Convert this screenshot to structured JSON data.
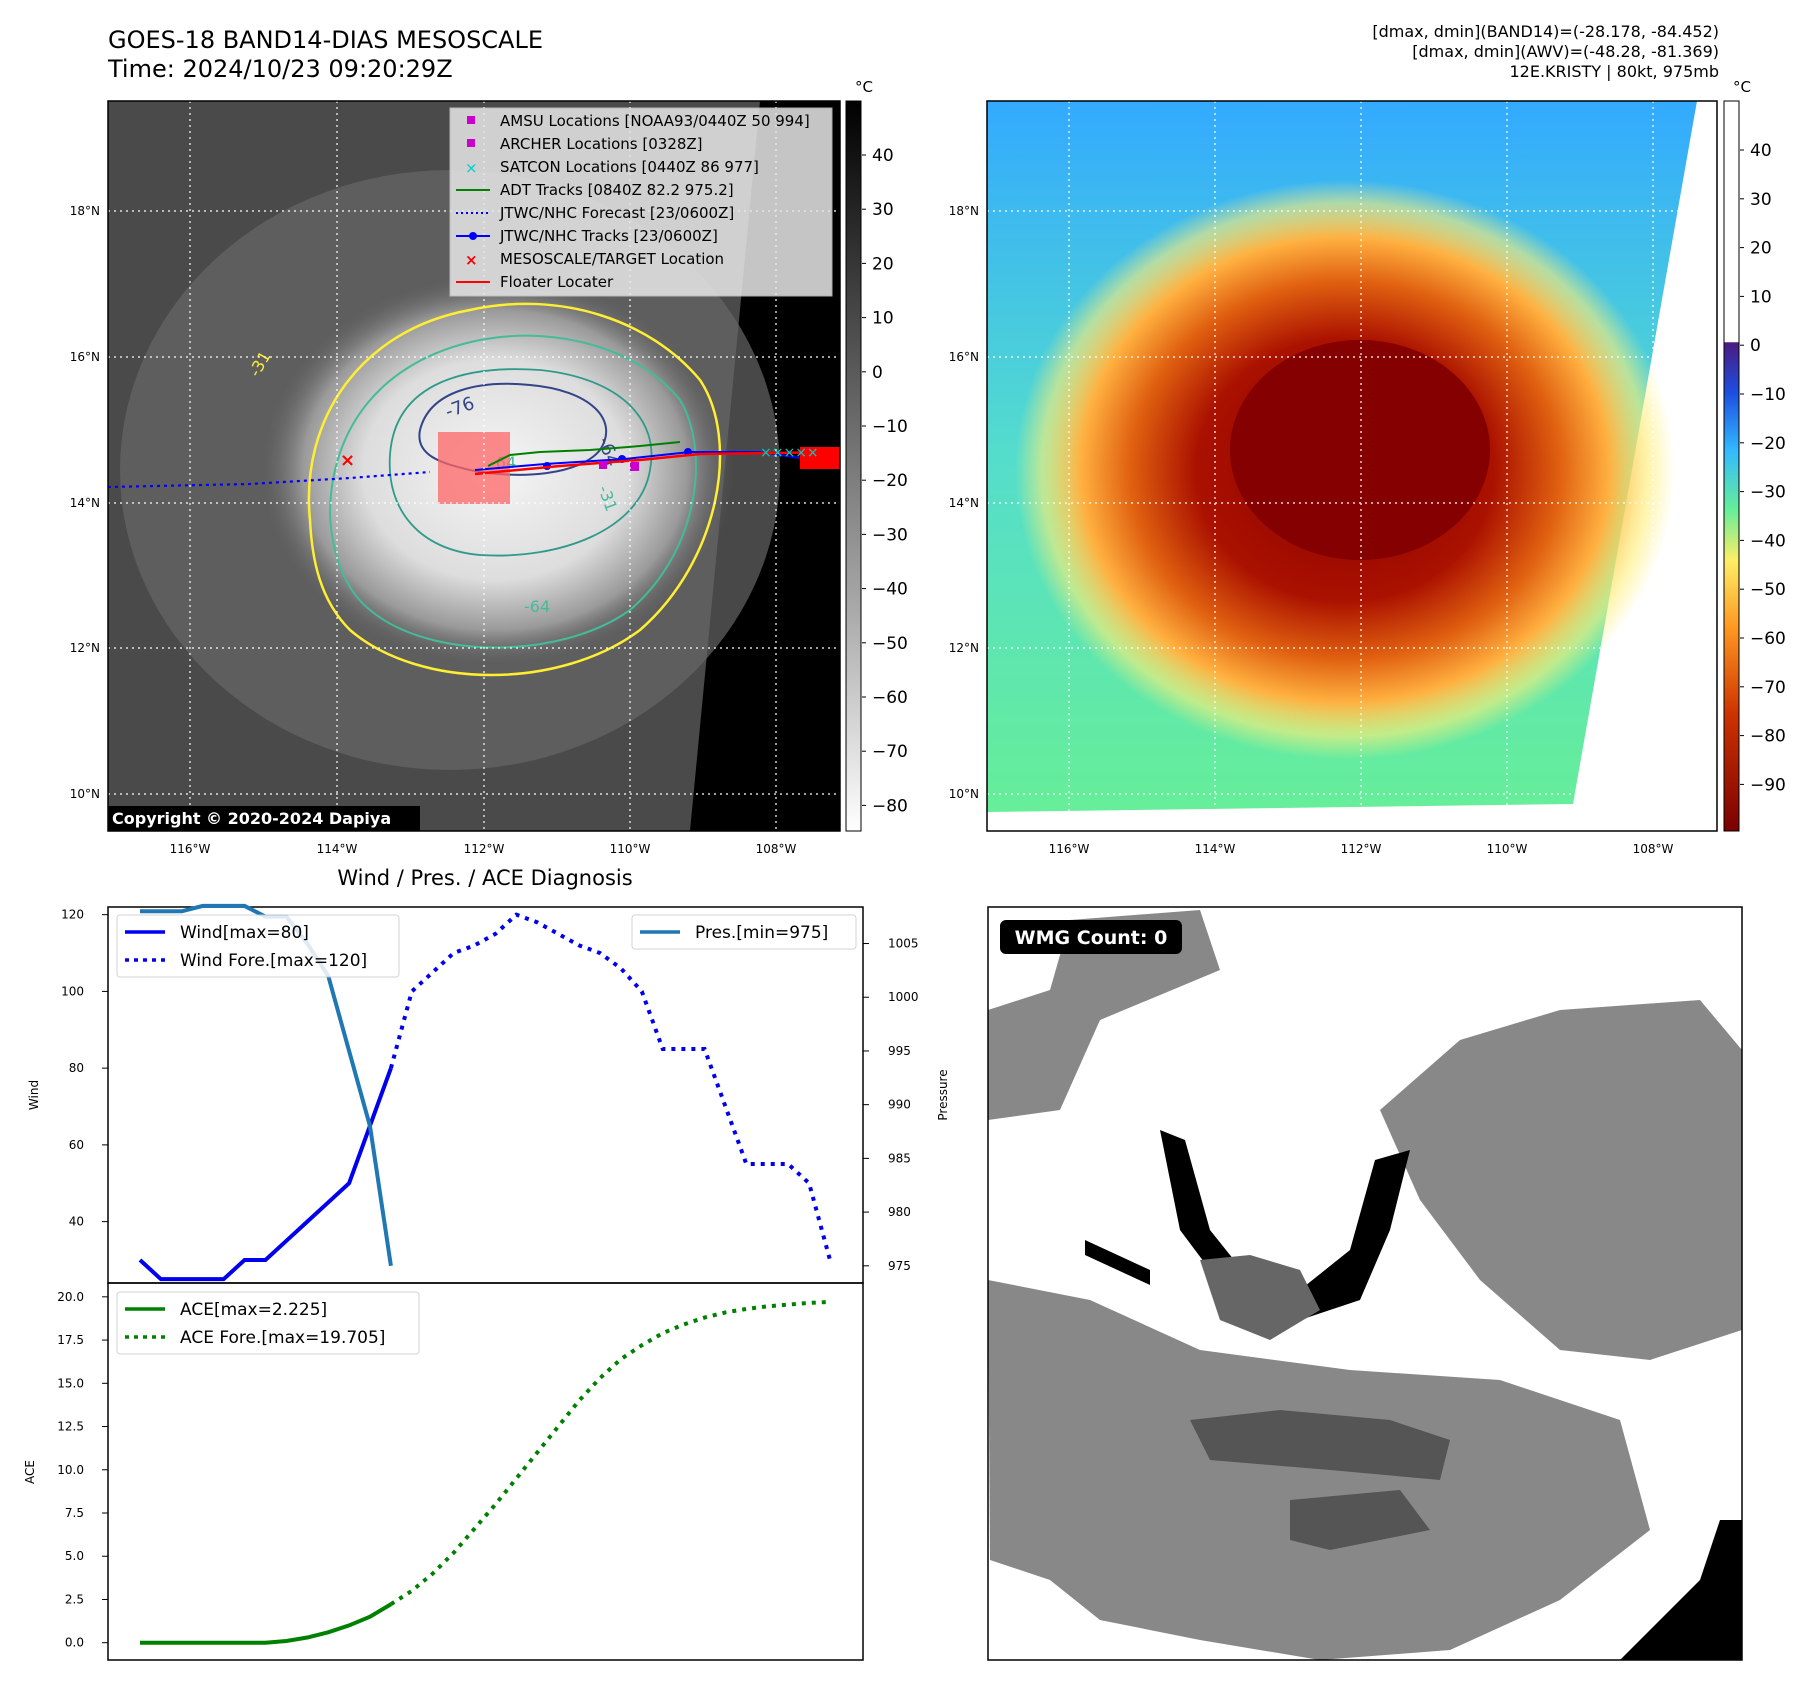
{
  "header": {
    "title_line1": "GOES-18 BAND14-DIAS MESOSCALE",
    "title_line2": "Time: 2024/10/23 09:20:29Z",
    "info_line1": "[dmax, dmin](BAND14)=(-28.178, -84.452)",
    "info_line2": "[dmax, dmin](AWV)=(-48.28, -81.369)",
    "info_line3": "12E.KRISTY | 80kt, 975mb"
  },
  "colors": {
    "wind": "#0000ee",
    "pressure": "#1f77b4",
    "ace": "#008000",
    "nhc_track": "#0000ff",
    "adt_track": "#008000",
    "floater": "#ff0000",
    "amsu": "#cc00cc",
    "satcon": "#00cccc",
    "contour_yellow": "#ffee33",
    "contour_teal": "#44bb99",
    "contour_navy": "#334488"
  },
  "ir_panel": {
    "copyright": "Copyright © 2020-2024 Dapiya",
    "lon_ticks": [
      "116°W",
      "114°W",
      "112°W",
      "110°W",
      "108°W"
    ],
    "lat_ticks": [
      "18°N",
      "16°N",
      "14°N",
      "12°N",
      "10°N"
    ],
    "contour_labels": [
      "-76",
      "-64",
      "-64",
      "-31",
      "-31",
      "-64"
    ],
    "legend": [
      {
        "label": "AMSU Locations [NOAA93/0440Z 50 994]",
        "marker": "square",
        "color": "#cc00cc"
      },
      {
        "label": "ARCHER Locations [0328Z]",
        "marker": "square",
        "color": "#cc00cc"
      },
      {
        "label": "SATCON Locations [0440Z 86 977]",
        "marker": "x",
        "color": "#00cccc"
      },
      {
        "label": "ADT Tracks [0840Z 82.2 975.2]",
        "marker": "line",
        "color": "#008000"
      },
      {
        "label": "JTWC/NHC Forecast [23/0600Z]",
        "marker": "dotted",
        "color": "#0000ff"
      },
      {
        "label": "JTWC/NHC Tracks [23/0600Z]",
        "marker": "line-dot",
        "color": "#0000ff"
      },
      {
        "label": "MESOSCALE/TARGET Location",
        "marker": "x",
        "color": "#ff0000"
      },
      {
        "label": "Floater Locater",
        "marker": "line",
        "color": "#ff0000"
      }
    ],
    "colorbar": {
      "unit": "°C",
      "ticks": [
        "40",
        "30",
        "20",
        "10",
        "0",
        "−10",
        "−20",
        "−30",
        "−40",
        "−50",
        "−60",
        "−70",
        "−80"
      ]
    }
  },
  "awv_panel": {
    "lon_ticks": [
      "116°W",
      "114°W",
      "112°W",
      "110°W",
      "108°W"
    ],
    "lat_ticks": [
      "18°N",
      "16°N",
      "14°N",
      "12°N",
      "10°N"
    ],
    "colorbar": {
      "unit": "°C",
      "ticks": [
        "40",
        "30",
        "20",
        "10",
        "0",
        "−10",
        "−20",
        "−30",
        "−40",
        "−50",
        "−60",
        "−70",
        "−80",
        "−90"
      ]
    }
  },
  "chart_data": [
    {
      "type": "line",
      "title": "Wind / Pres. / ACE Diagnosis",
      "ylabel": "Wind",
      "y2label": "Pressure",
      "ylim": [
        24,
        122
      ],
      "y2lim": [
        973.4,
        1008.4
      ],
      "yticks": [
        40,
        60,
        80,
        100,
        120
      ],
      "y2ticks": [
        975,
        980,
        985,
        990,
        995,
        1000,
        1005
      ],
      "legend": [
        "Wind[max=80]",
        "Wind Fore.[max=120]",
        "Pres.[min=975]"
      ],
      "series": [
        {
          "name": "Wind[max=80]",
          "style": "solid",
          "x": [
            0,
            1,
            2,
            3,
            4,
            5,
            6,
            7,
            8,
            9,
            10,
            11,
            12
          ],
          "values": [
            30,
            25,
            25,
            25,
            25,
            30,
            30,
            35,
            40,
            45,
            50,
            65,
            80
          ]
        },
        {
          "name": "Wind Fore.[max=120]",
          "style": "dotted",
          "x": [
            12,
            13,
            14,
            15,
            16,
            17,
            18,
            19,
            20,
            21,
            22,
            23,
            24,
            25,
            26,
            27,
            28,
            29,
            30,
            31,
            32,
            33
          ],
          "values": [
            80,
            100,
            105,
            110,
            112,
            115,
            120,
            118,
            115,
            112,
            110,
            106,
            100,
            85,
            85,
            85,
            70,
            55,
            55,
            55,
            50,
            30
          ]
        },
        {
          "name": "Pres.[min=975]",
          "style": "solid",
          "axis": "y2",
          "x": [
            0,
            1,
            2,
            3,
            4,
            5,
            6,
            7,
            8,
            9,
            10,
            11,
            12
          ],
          "values": [
            1008,
            1008,
            1008,
            1008.5,
            1008.5,
            1008.5,
            1007.5,
            1007.5,
            1005,
            1002,
            995,
            988,
            975
          ]
        }
      ]
    },
    {
      "type": "line",
      "ylabel": "ACE",
      "ylim": [
        -1.0,
        20.8
      ],
      "yticks": [
        0.0,
        2.5,
        5.0,
        7.5,
        10.0,
        12.5,
        15.0,
        17.5,
        20.0
      ],
      "ytick_labels": [
        "0.0",
        "2.5",
        "5.0",
        "7.5",
        "10.0",
        "12.5",
        "15.0",
        "17.5",
        "20.0"
      ],
      "legend": [
        "ACE[max=2.225]",
        "ACE Fore.[max=19.705]"
      ],
      "series": [
        {
          "name": "ACE[max=2.225]",
          "style": "solid",
          "x": [
            0,
            1,
            2,
            3,
            4,
            5,
            6,
            7,
            8,
            9,
            10,
            11,
            12
          ],
          "values": [
            0,
            0,
            0,
            0,
            0,
            0,
            0,
            0.1,
            0.3,
            0.6,
            1.0,
            1.5,
            2.225
          ]
        },
        {
          "name": "ACE Fore.[max=19.705]",
          "style": "dotted",
          "x": [
            12,
            13,
            14,
            15,
            16,
            17,
            18,
            19,
            20,
            21,
            22,
            23,
            24,
            25,
            26,
            27,
            28,
            29,
            30,
            31,
            32,
            33
          ],
          "values": [
            2.225,
            3.0,
            4.0,
            5.2,
            6.6,
            8.0,
            9.5,
            11.0,
            12.5,
            14.0,
            15.3,
            16.4,
            17.2,
            17.9,
            18.4,
            18.8,
            19.1,
            19.3,
            19.45,
            19.55,
            19.65,
            19.705
          ]
        }
      ]
    }
  ],
  "wmg_panel": {
    "badge": "WMG Count: 0"
  }
}
